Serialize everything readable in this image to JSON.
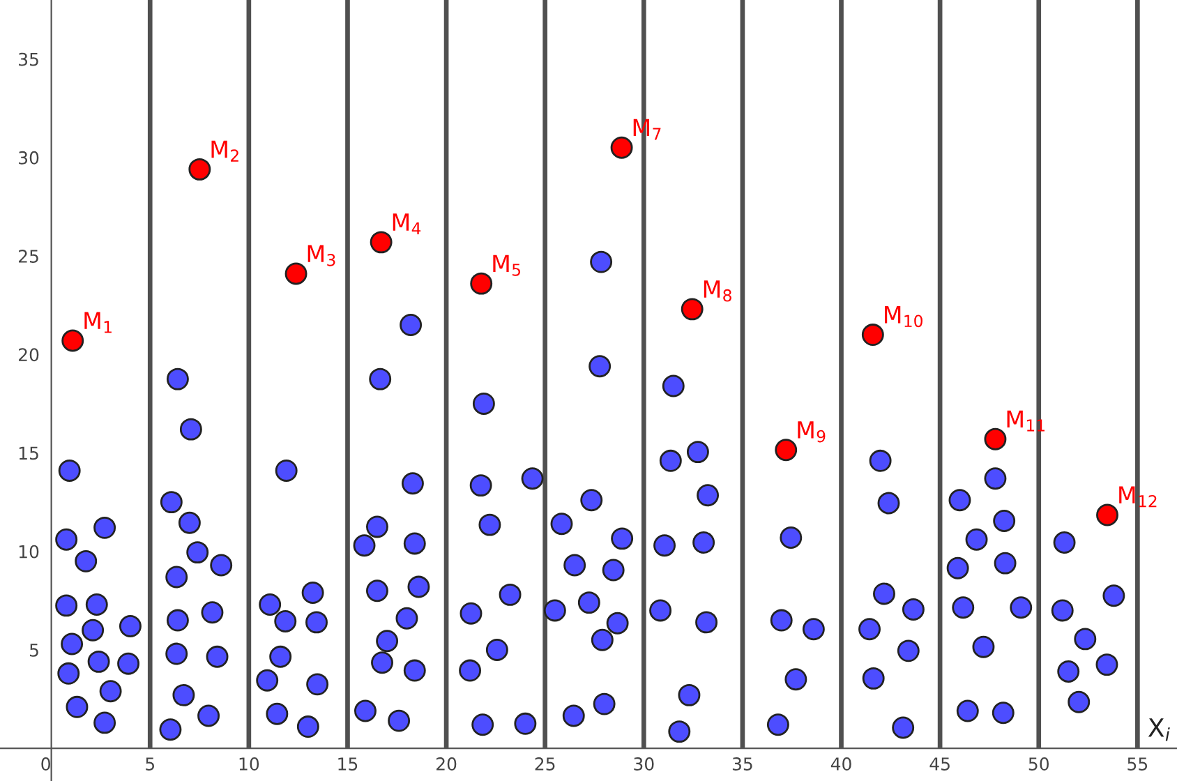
{
  "chart_data": {
    "type": "scatter",
    "xlabel": "X$_{i}$",
    "xlim": [
      -2.6,
      57
    ],
    "ylim": [
      -1.66,
      38
    ],
    "xticks": [
      0,
      5,
      10,
      15,
      20,
      25,
      30,
      35,
      40,
      45,
      50,
      55
    ],
    "yticks": [
      5,
      10,
      15,
      20,
      25,
      30,
      35
    ],
    "grid": false,
    "marker": "circle",
    "series": [
      {
        "color": "#4d4dff",
        "x": [
          0.92,
          0.76,
          1.75,
          2.7,
          0.76,
          2.3,
          1.04,
          2.1,
          0.87,
          2.4,
          4.0,
          3.9,
          3.0,
          1.3,
          2.7,
          6.4,
          7.07,
          6.08,
          7.0,
          7.4,
          8.6,
          6.34,
          6.4,
          8.15,
          6.34,
          8.4,
          6.7,
          7.96,
          6.03,
          11.9,
          11.07,
          13.24,
          11.85,
          13.43,
          11.6,
          10.93,
          13.47,
          11.43,
          13.0,
          16.65,
          15.85,
          16.5,
          16.5,
          17.0,
          16.75,
          15.9,
          17.6,
          18.0,
          18.3,
          18.4,
          18.6,
          18.4,
          18.2,
          21.9,
          21.75,
          24.36,
          22.2,
          23.23,
          21.25,
          22.57,
          21.2,
          21.84,
          24.0,
          27.84,
          27.77,
          27.35,
          25.84,
          28.9,
          26.5,
          28.46,
          25.5,
          27.23,
          28.67,
          27.9,
          28.0,
          26.45,
          31.5,
          32.74,
          31.36,
          33.24,
          31.05,
          33.03,
          30.84,
          33.17,
          32.3,
          31.8,
          37.45,
          36.97,
          38.6,
          37.7,
          36.8,
          41.98,
          42.4,
          42.17,
          43.65,
          41.43,
          43.4,
          41.63,
          43.13,
          47.8,
          46.0,
          48.25,
          46.85,
          48.3,
          45.9,
          46.17,
          49.1,
          47.2,
          46.4,
          48.2,
          51.3,
          53.8,
          51.2,
          52.35,
          51.5,
          53.45,
          52.03
        ],
        "values": [
          14.1,
          10.6,
          9.5,
          11.2,
          7.25,
          7.3,
          5.3,
          6.0,
          3.8,
          4.4,
          6.2,
          4.3,
          2.9,
          2.1,
          1.3,
          18.75,
          16.2,
          12.5,
          11.45,
          9.95,
          9.3,
          8.7,
          6.5,
          6.9,
          4.8,
          4.65,
          2.7,
          1.65,
          0.95,
          14.1,
          7.3,
          7.9,
          6.45,
          6.4,
          4.65,
          3.45,
          3.25,
          1.75,
          1.1,
          18.75,
          10.3,
          11.25,
          8.0,
          5.45,
          4.35,
          1.9,
          1.4,
          6.6,
          13.45,
          10.4,
          8.2,
          3.95,
          21.5,
          17.5,
          13.35,
          13.7,
          11.35,
          7.8,
          6.85,
          5.0,
          3.95,
          1.2,
          1.25,
          24.7,
          19.4,
          12.6,
          11.4,
          10.65,
          9.3,
          9.05,
          7.0,
          7.4,
          6.35,
          5.5,
          2.25,
          1.65,
          18.4,
          15.05,
          14.6,
          12.85,
          10.3,
          10.45,
          7.0,
          6.4,
          2.7,
          0.85,
          10.7,
          6.5,
          6.05,
          3.5,
          1.2,
          14.6,
          12.45,
          7.85,
          7.05,
          6.05,
          4.95,
          3.55,
          1.05,
          13.7,
          12.6,
          11.55,
          10.6,
          9.4,
          9.15,
          7.15,
          7.15,
          5.15,
          1.9,
          1.8,
          10.45,
          7.75,
          7.0,
          5.55,
          3.9,
          4.25,
          2.35
        ]
      },
      {
        "color": "#ff0000",
        "x": [
          1.08,
          7.51,
          12.39,
          16.7,
          21.77,
          28.88,
          32.45,
          37.2,
          41.6,
          47.8,
          53.47
        ],
        "values": [
          20.7,
          29.4,
          24.1,
          25.7,
          23.6,
          30.5,
          22.3,
          15.15,
          21.0,
          15.7,
          11.85
        ]
      }
    ],
    "ref_lines": [
      {
        "axis": "x",
        "value": 5,
        "color": "#505050"
      },
      {
        "axis": "x",
        "value": 10,
        "color": "#505050"
      },
      {
        "axis": "x",
        "value": 15,
        "color": "#505050"
      },
      {
        "axis": "x",
        "value": 20,
        "color": "#505050"
      },
      {
        "axis": "x",
        "value": 25,
        "color": "#505050"
      },
      {
        "axis": "x",
        "value": 30,
        "color": "#505050"
      },
      {
        "axis": "x",
        "value": 35,
        "color": "#505050"
      },
      {
        "axis": "x",
        "value": 40,
        "color": "#505050"
      },
      {
        "axis": "x",
        "value": 45,
        "color": "#505050"
      },
      {
        "axis": "x",
        "value": 50,
        "color": "#505050"
      },
      {
        "axis": "x",
        "value": 55,
        "color": "#505050"
      }
    ],
    "annotations": [
      {
        "text": "M$_{1}$",
        "x": 1.08,
        "y": 20.7
      },
      {
        "text": "M$_{2}$",
        "x": 7.51,
        "y": 29.4
      },
      {
        "text": "M$_{3}$",
        "x": 12.39,
        "y": 24.1
      },
      {
        "text": "M$_{4}$",
        "x": 16.7,
        "y": 25.7
      },
      {
        "text": "M$_{5}$",
        "x": 21.77,
        "y": 23.6
      },
      {
        "text": "M$_{7}$",
        "x": 28.88,
        "y": 30.5
      },
      {
        "text": "M$_{8}$",
        "x": 32.45,
        "y": 22.3
      },
      {
        "text": "M$_{9}$",
        "x": 37.2,
        "y": 15.15
      },
      {
        "text": "M$_{10}$",
        "x": 41.6,
        "y": 21.0
      },
      {
        "text": "M$_{11}$",
        "x": 47.8,
        "y": 15.7
      },
      {
        "text": "M$_{12}$",
        "x": 53.47,
        "y": 11.85
      }
    ]
  }
}
